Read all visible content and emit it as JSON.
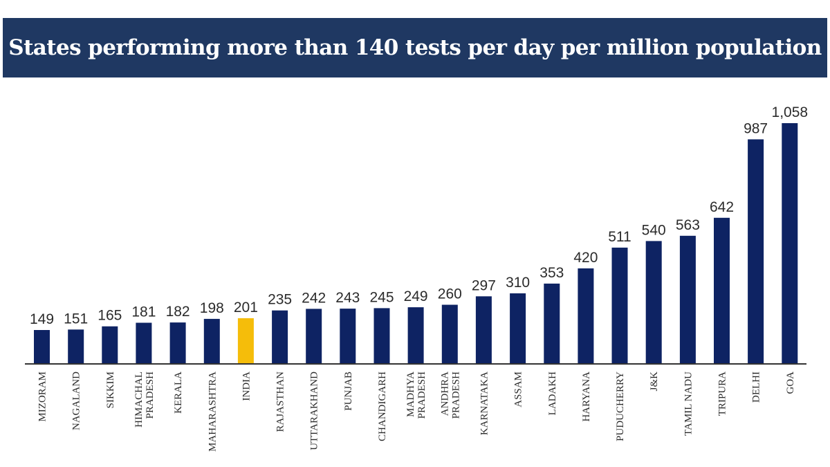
{
  "header": {
    "title": "States performing more than 140 tests per day per million population",
    "background_color": "#1f3862",
    "text_color": "#ffffff"
  },
  "chart_data": {
    "type": "bar",
    "title": "States performing more than 140 tests per day per million population",
    "xlabel": "",
    "ylabel": "",
    "ylim": [
      0,
      1058
    ],
    "grid": false,
    "legend": "none",
    "categories": [
      [
        "MIZORAM"
      ],
      [
        "NAGALAND"
      ],
      [
        "SIKKIM"
      ],
      [
        "HIMACHAL",
        "PRADESH"
      ],
      [
        "KERALA"
      ],
      [
        "MAHARASHTRA"
      ],
      [
        "INDIA"
      ],
      [
        "RAJASTHAN"
      ],
      [
        "UTTARAKHAND"
      ],
      [
        "PUNJAB"
      ],
      [
        "CHANDIGARH"
      ],
      [
        "MADHYA",
        "PRADESH"
      ],
      [
        "ANDHRA",
        "PRADESH"
      ],
      [
        "KARNATAKA"
      ],
      [
        "ASSAM"
      ],
      [
        "LADAKH"
      ],
      [
        "HARYANA"
      ],
      [
        "PUDUCHERRY"
      ],
      [
        "J&K"
      ],
      [
        "TAMIL NADU"
      ],
      [
        "TRIPURA"
      ],
      [
        "DELHI"
      ],
      [
        "GOA"
      ]
    ],
    "values": [
      149,
      151,
      165,
      181,
      182,
      198,
      201,
      235,
      242,
      243,
      245,
      249,
      260,
      297,
      310,
      353,
      420,
      511,
      540,
      563,
      642,
      987,
      1058
    ],
    "value_labels": [
      "149",
      "151",
      "165",
      "181",
      "182",
      "198",
      "201",
      "235",
      "242",
      "243",
      "245",
      "249",
      "260",
      "297",
      "310",
      "353",
      "420",
      "511",
      "540",
      "563",
      "642",
      "987",
      "1,058"
    ],
    "highlight_category": "INDIA",
    "colors": {
      "bar": "#0e2363",
      "highlight": "#f5bd0a",
      "axis": "#333333",
      "label": "#2b2b2b"
    }
  }
}
